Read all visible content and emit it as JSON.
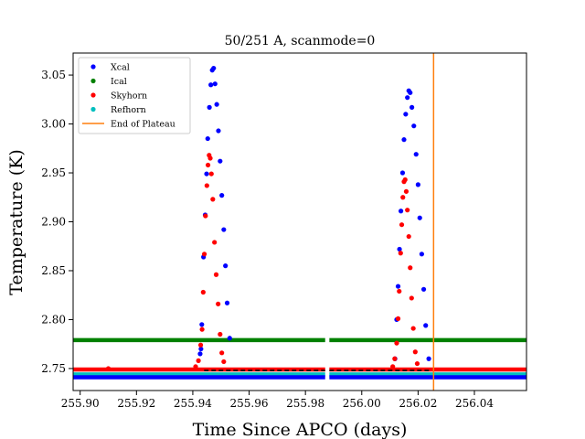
{
  "chart_data": {
    "type": "scatter",
    "title": "50/251 A, scanmode=0",
    "xlabel": "Time Since APCO (days)",
    "ylabel": "Temperature (K)",
    "xlim": [
      255.8975,
      256.0585
    ],
    "ylim": [
      2.7275,
      3.0725
    ],
    "xticks": [
      255.9,
      255.92,
      255.94,
      255.96,
      255.98,
      256.0,
      256.02,
      256.04
    ],
    "xtick_labels": [
      "255.90",
      "255.92",
      "255.94",
      "255.96",
      "255.98",
      "256.00",
      "256.02",
      "256.04"
    ],
    "yticks": [
      2.75,
      2.8,
      2.85,
      2.9,
      2.95,
      3.0,
      3.05
    ],
    "ytick_labels": [
      "2.75",
      "2.80",
      "2.85",
      "2.90",
      "2.95",
      "3.00",
      "3.05"
    ],
    "grid": false,
    "legend_position": "top-left",
    "legend": [
      {
        "name": "Xcal",
        "color": "#0000ff",
        "marker": "dot"
      },
      {
        "name": "Ical",
        "color": "#008000",
        "marker": "dot"
      },
      {
        "name": "Skyhorn",
        "color": "#ff0000",
        "marker": "dot"
      },
      {
        "name": "Refhorn",
        "color": "#00bfbf",
        "marker": "dot"
      },
      {
        "name": "End of Plateau",
        "color": "#ff7f0e",
        "marker": "line"
      }
    ],
    "baselines": [
      {
        "series": "Ical",
        "color": "#008000",
        "y": 2.779,
        "segments": [
          [
            255.8975,
            255.987
          ],
          [
            255.9885,
            256.0585
          ]
        ]
      },
      {
        "series": "Skyhorn",
        "color": "#ff0000",
        "y": 2.749,
        "segments": [
          [
            255.8975,
            255.987
          ],
          [
            255.9885,
            256.0585
          ]
        ]
      },
      {
        "series": "Refhorn",
        "color": "#00bfbf",
        "y": 2.744,
        "segments": [
          [
            255.8975,
            255.987
          ],
          [
            255.9885,
            256.0585
          ]
        ]
      },
      {
        "series": "Xcal",
        "color": "#0000ff",
        "y": 2.741,
        "segments": [
          [
            255.8975,
            255.987
          ],
          [
            255.9885,
            256.0585
          ]
        ]
      }
    ],
    "dashed_reference": {
      "y": 2.748,
      "segments": [
        [
          255.944,
          255.987
        ],
        [
          255.9885,
          256.024
        ]
      ],
      "color": "#000000"
    },
    "vertical_line": {
      "name": "End of Plateau",
      "x": 256.0255,
      "color": "#ff7f0e"
    },
    "series": [
      {
        "name": "Xcal",
        "color": "#0000ff",
        "points": [
          [
            255.9426,
            2.765
          ],
          [
            255.9429,
            2.77
          ],
          [
            255.9432,
            2.795
          ],
          [
            255.9438,
            2.864
          ],
          [
            255.9444,
            2.907
          ],
          [
            255.9449,
            2.949
          ],
          [
            255.9453,
            2.985
          ],
          [
            255.9459,
            3.017
          ],
          [
            255.9464,
            3.04
          ],
          [
            255.9469,
            3.055
          ],
          [
            255.9474,
            3.057
          ],
          [
            255.9479,
            3.041
          ],
          [
            255.9485,
            3.02
          ],
          [
            255.9491,
            2.993
          ],
          [
            255.9497,
            2.962
          ],
          [
            255.9503,
            2.927
          ],
          [
            255.951,
            2.892
          ],
          [
            255.9516,
            2.855
          ],
          [
            255.9522,
            2.817
          ],
          [
            255.9531,
            2.781
          ],
          [
            256.0118,
            2.76
          ],
          [
            256.0124,
            2.8
          ],
          [
            256.0129,
            2.834
          ],
          [
            256.0134,
            2.872
          ],
          [
            256.0139,
            2.911
          ],
          [
            256.0145,
            2.95
          ],
          [
            256.015,
            2.984
          ],
          [
            256.0156,
            3.01
          ],
          [
            256.0162,
            3.027
          ],
          [
            256.0167,
            3.034
          ],
          [
            256.0172,
            3.032
          ],
          [
            256.0178,
            3.017
          ],
          [
            256.0185,
            2.998
          ],
          [
            256.0193,
            2.969
          ],
          [
            256.02,
            2.938
          ],
          [
            256.0206,
            2.904
          ],
          [
            256.0213,
            2.867
          ],
          [
            256.022,
            2.831
          ],
          [
            256.0227,
            2.794
          ],
          [
            256.0238,
            2.76
          ]
        ]
      },
      {
        "name": "Skyhorn",
        "color": "#ff0000",
        "points": [
          [
            255.91,
            2.75
          ],
          [
            255.941,
            2.752
          ],
          [
            255.942,
            2.758
          ],
          [
            255.9428,
            2.774
          ],
          [
            255.9433,
            2.79
          ],
          [
            255.9437,
            2.828
          ],
          [
            255.9441,
            2.867
          ],
          [
            255.9445,
            2.906
          ],
          [
            255.945,
            2.937
          ],
          [
            255.9454,
            2.958
          ],
          [
            255.9458,
            2.968
          ],
          [
            255.9462,
            2.965
          ],
          [
            255.9466,
            2.949
          ],
          [
            255.9471,
            2.923
          ],
          [
            255.9477,
            2.879
          ],
          [
            255.9483,
            2.846
          ],
          [
            255.949,
            2.816
          ],
          [
            255.9497,
            2.785
          ],
          [
            255.9503,
            2.766
          ],
          [
            255.951,
            2.757
          ],
          [
            256.011,
            2.752
          ],
          [
            256.0117,
            2.76
          ],
          [
            256.0124,
            2.776
          ],
          [
            256.0129,
            2.801
          ],
          [
            256.0133,
            2.829
          ],
          [
            256.0138,
            2.868
          ],
          [
            256.0142,
            2.897
          ],
          [
            256.0146,
            2.925
          ],
          [
            256.015,
            2.941
          ],
          [
            256.0154,
            2.943
          ],
          [
            256.0158,
            2.931
          ],
          [
            256.0162,
            2.912
          ],
          [
            256.0167,
            2.885
          ],
          [
            256.0172,
            2.853
          ],
          [
            256.0177,
            2.822
          ],
          [
            256.0183,
            2.791
          ],
          [
            256.019,
            2.767
          ],
          [
            256.0197,
            2.755
          ]
        ]
      }
    ]
  }
}
